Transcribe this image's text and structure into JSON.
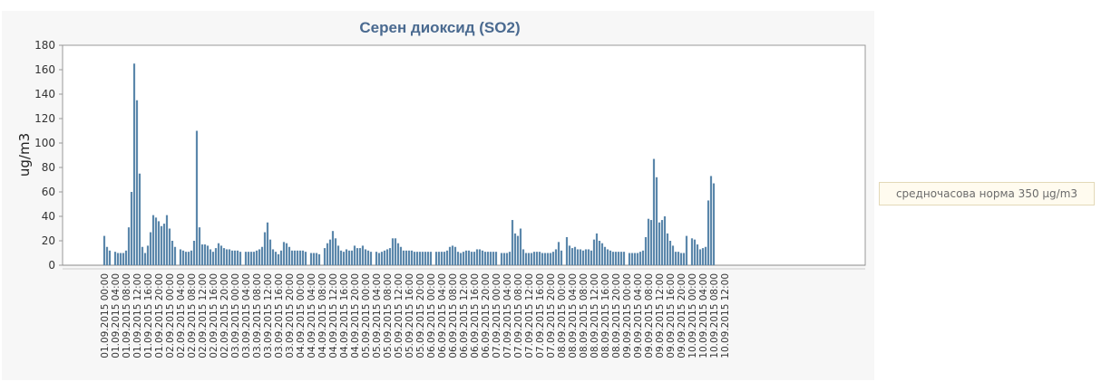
{
  "chart_data": {
    "type": "bar",
    "title": "Серен диоксид (SO2)",
    "ylabel": "ug/m3",
    "xlabel": "",
    "ylim": [
      0,
      180
    ],
    "yticks": [
      0,
      20,
      40,
      60,
      80,
      100,
      120,
      140,
      160,
      180
    ],
    "grid": false,
    "legend": "none",
    "colors": {
      "bar": "#5b87ab",
      "title": "#4a6a90",
      "axis": "#999999",
      "text": "#333333"
    },
    "x_start": "01.09.2015 00:00",
    "step_hours": 1,
    "tick_labels": [
      "01.09.2015 00:00",
      "01.09.2015 04:00",
      "01.09.2015 08:00",
      "01.09.2015 12:00",
      "01.09.2015 16:00",
      "01.09.2015 20:00",
      "02.09.2015 00:00",
      "02.09.2015 04:00",
      "02.09.2015 08:00",
      "02.09.2015 12:00",
      "02.09.2015 16:00",
      "02.09.2015 20:00",
      "03.09.2015 00:00",
      "03.09.2015 04:00",
      "03.09.2015 08:00",
      "03.09.2015 12:00",
      "03.09.2015 16:00",
      "03.09.2015 20:00",
      "04.09.2015 00:00",
      "04.09.2015 04:00",
      "04.09.2015 08:00",
      "04.09.2015 12:00",
      "04.09.2015 16:00",
      "04.09.2015 20:00",
      "05.09.2015 00:00",
      "05.09.2015 04:00",
      "05.09.2015 08:00",
      "05.09.2015 12:00",
      "05.09.2015 16:00",
      "05.09.2015 20:00",
      "06.09.2015 00:00",
      "06.09.2015 04:00",
      "06.09.2015 08:00",
      "06.09.2015 12:00",
      "06.09.2015 16:00",
      "06.09.2015 20:00",
      "07.09.2015 00:00",
      "07.09.2015 04:00",
      "07.09.2015 08:00",
      "07.09.2015 12:00",
      "07.09.2015 16:00",
      "07.09.2015 20:00",
      "08.09.2015 00:00",
      "08.09.2015 04:00",
      "08.09.2015 08:00",
      "08.09.2015 12:00",
      "08.09.2015 16:00",
      "08.09.2015 20:00",
      "09.09.2015 00:00",
      "09.09.2015 04:00",
      "09.09.2015 08:00",
      "09.09.2015 12:00",
      "09.09.2015 16:00",
      "09.09.2015 20:00",
      "10.09.2015 00:00",
      "10.09.2015 04:00",
      "10.09.2015 08:00",
      "10.09.2015 12:00"
    ],
    "values": [
      24,
      15,
      12,
      null,
      11,
      10,
      10,
      10,
      12,
      31,
      60,
      165,
      135,
      75,
      15,
      10,
      16,
      27,
      41,
      39,
      36,
      32,
      34,
      41,
      30,
      20,
      15,
      null,
      13,
      12,
      11,
      11,
      12,
      20,
      110,
      31,
      17,
      17,
      16,
      13,
      11,
      14,
      18,
      16,
      14,
      13,
      13,
      12,
      12,
      12,
      11,
      null,
      11,
      11,
      11,
      11,
      12,
      13,
      15,
      27,
      35,
      21,
      13,
      11,
      9,
      12,
      19,
      18,
      15,
      12,
      12,
      12,
      12,
      12,
      11,
      null,
      10,
      10,
      10,
      9,
      null,
      14,
      18,
      21,
      28,
      22,
      16,
      12,
      11,
      13,
      12,
      12,
      16,
      14,
      14,
      16,
      13,
      12,
      11,
      null,
      11,
      10,
      11,
      12,
      13,
      14,
      22,
      22,
      18,
      15,
      12,
      12,
      12,
      12,
      11,
      11,
      11,
      11,
      11,
      11,
      11,
      null,
      11,
      11,
      11,
      11,
      12,
      15,
      16,
      15,
      11,
      10,
      11,
      12,
      12,
      11,
      11,
      13,
      13,
      12,
      11,
      11,
      11,
      11,
      11,
      null,
      10,
      10,
      10,
      11,
      37,
      26,
      24,
      30,
      13,
      10,
      10,
      10,
      11,
      11,
      11,
      10,
      10,
      10,
      10,
      11,
      13,
      19,
      12,
      null,
      23,
      16,
      14,
      15,
      13,
      13,
      12,
      13,
      13,
      12,
      21,
      26,
      20,
      18,
      15,
      13,
      12,
      11,
      11,
      11,
      11,
      11,
      null,
      10,
      10,
      10,
      10,
      11,
      12,
      23,
      38,
      37,
      87,
      72,
      35,
      37,
      40,
      26,
      20,
      16,
      11,
      11,
      10,
      10,
      24,
      null,
      22,
      21,
      17,
      13,
      14,
      15,
      53,
      73,
      67
    ]
  },
  "norm_badge": {
    "text": "средночасова норма 350 μg/m3"
  }
}
